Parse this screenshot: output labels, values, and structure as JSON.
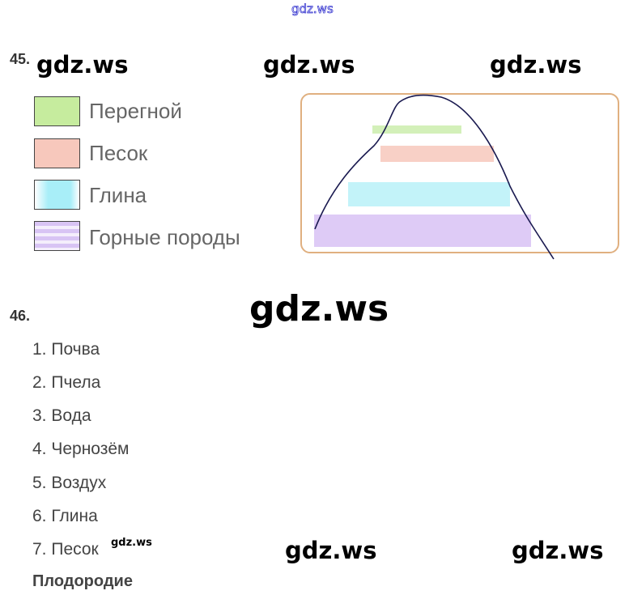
{
  "watermark": "gdz.ws",
  "task45": {
    "number": "45.",
    "legend": [
      {
        "label": "Перегной",
        "color": "#b8e890"
      },
      {
        "label": "Песок",
        "color": "#f4b8a8"
      },
      {
        "label": "Глина",
        "color": "#9fe8f4"
      },
      {
        "label": "Горные породы",
        "color": "#d0b8f0"
      }
    ]
  },
  "task46": {
    "number": "46.",
    "items": [
      "1. Почва",
      "2. Пчела",
      "3. Вода",
      "4. Чернозём",
      "5. Воздух",
      "6. Глина",
      "7. Песок"
    ],
    "answer": "Плодородие"
  }
}
